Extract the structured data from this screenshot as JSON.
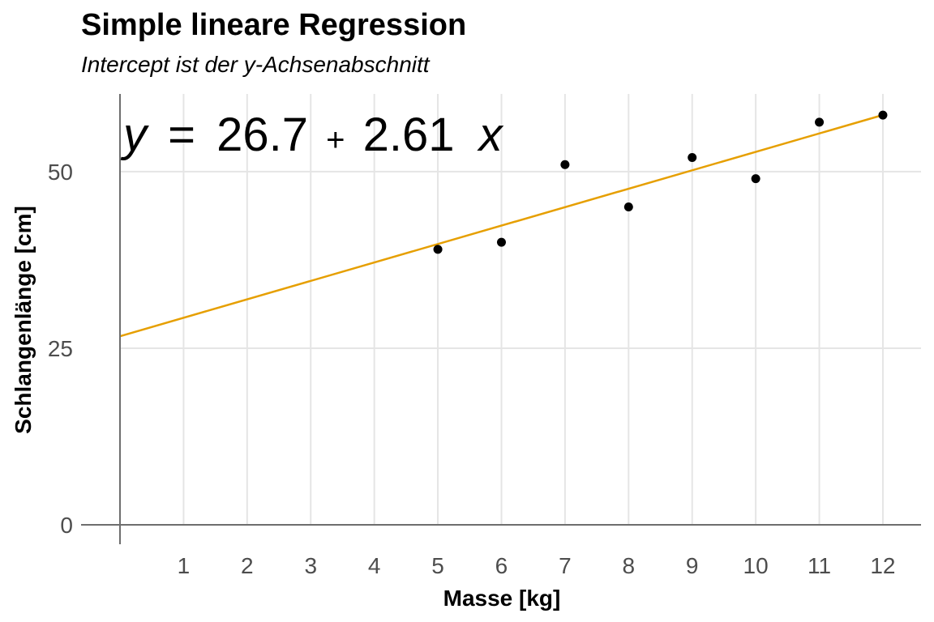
{
  "chart_data": {
    "type": "scatter",
    "title": "Simple lineare Regression",
    "subtitle": "Intercept ist der y-Achsenabschnitt",
    "xlabel": "Masse [kg]",
    "ylabel": "Schlangenlänge [cm]",
    "x_ticks": [
      1,
      2,
      3,
      4,
      5,
      6,
      7,
      8,
      9,
      10,
      11,
      12
    ],
    "y_ticks": [
      0,
      25,
      50
    ],
    "xlim": [
      0,
      12.6
    ],
    "ylim": [
      0,
      61
    ],
    "grid": true,
    "points": [
      {
        "x": 5,
        "y": 39
      },
      {
        "x": 6,
        "y": 40
      },
      {
        "x": 7,
        "y": 51
      },
      {
        "x": 8,
        "y": 45
      },
      {
        "x": 9,
        "y": 52
      },
      {
        "x": 10,
        "y": 49
      },
      {
        "x": 11,
        "y": 57
      },
      {
        "x": 12,
        "y": 58
      }
    ],
    "regression_line": {
      "intercept": 26.7,
      "slope": 2.61,
      "x_range": [
        0,
        12
      ],
      "color": "#E69F00"
    },
    "equation": {
      "y_var": "y",
      "equals": "=",
      "intercept": "26.7",
      "plus": "+",
      "slope": "2.61",
      "x_var": "x"
    },
    "point_color": "#000000",
    "axis_color": "#6e6e6e",
    "grid_color": "#e5e5e5"
  }
}
